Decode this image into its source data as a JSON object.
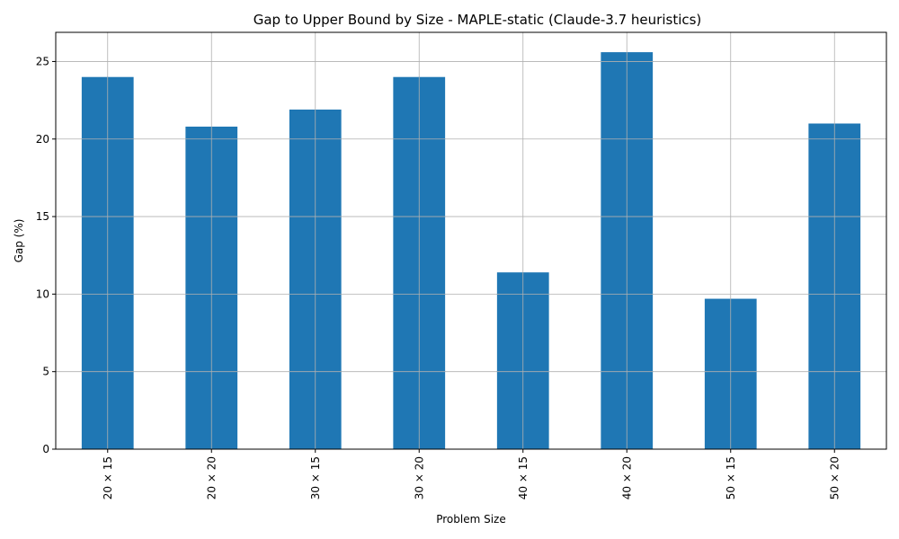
{
  "chart_data": {
    "type": "bar",
    "title": "Gap to Upper Bound by Size - MAPLE-static (Claude-3.7 heuristics)",
    "xlabel": "Problem Size",
    "ylabel": "Gap (%)",
    "categories": [
      "20 × 15",
      "20 × 20",
      "30 × 15",
      "30 × 20",
      "40 × 15",
      "40 × 20",
      "50 × 15",
      "50 × 20"
    ],
    "values": [
      24.0,
      20.8,
      21.9,
      24.0,
      11.4,
      25.6,
      9.7,
      21.0
    ],
    "ylim": [
      0,
      26.88
    ],
    "yticks": [
      0,
      5,
      10,
      15,
      20,
      25
    ],
    "ytick_labels": [
      "0",
      "5",
      "10",
      "15",
      "20",
      "25"
    ],
    "bar_color": "#1f77b4",
    "grid": true,
    "legend": "none"
  }
}
